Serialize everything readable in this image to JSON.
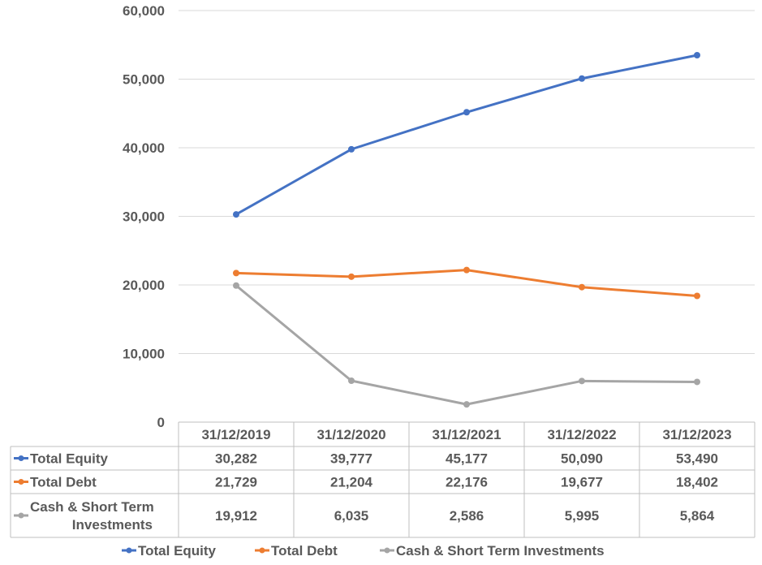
{
  "chart_data": {
    "type": "line",
    "categories": [
      "31/12/2019",
      "31/12/2020",
      "31/12/2021",
      "31/12/2022",
      "31/12/2023"
    ],
    "series": [
      {
        "name": "Total Equity",
        "name_lines": [
          "Total Equity"
        ],
        "color": "#4472c4",
        "values": [
          30282,
          39777,
          45177,
          50090,
          53490
        ],
        "labels": [
          "30,282",
          "39,777",
          "45,177",
          "50,090",
          "53,490"
        ]
      },
      {
        "name": "Total Debt",
        "name_lines": [
          "Total Debt"
        ],
        "color": "#ed7d31",
        "values": [
          21729,
          21204,
          22176,
          19677,
          18402
        ],
        "labels": [
          "21,729",
          "21,204",
          "22,176",
          "19,677",
          "18,402"
        ]
      },
      {
        "name": "Cash & Short Term Investments",
        "name_lines": [
          "Cash & Short Term",
          "Investments"
        ],
        "color": "#a5a5a5",
        "values": [
          19912,
          6035,
          2586,
          5995,
          5864
        ],
        "labels": [
          "19,912",
          "6,035",
          "2,586",
          "5,995",
          "5,864"
        ]
      }
    ],
    "ylim": [
      0,
      60000
    ],
    "yticks": [
      0,
      10000,
      20000,
      30000,
      40000,
      50000,
      60000
    ],
    "ytick_labels": [
      "0",
      "10,000",
      "20,000",
      "30,000",
      "40,000",
      "50,000",
      "60,000"
    ],
    "grid": true,
    "data_table": true,
    "legend_position": "bottom"
  }
}
